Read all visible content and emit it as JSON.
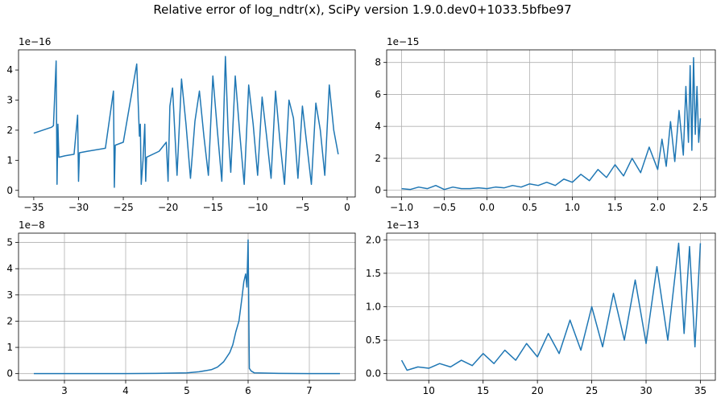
{
  "figure": {
    "suptitle": "Relative error of log_ndtr(x), SciPy version 1.9.0.dev0+1033.5bfbe97"
  },
  "colors": {
    "line": "#1f77b4",
    "grid": "#b0b0b0",
    "axes": "#000000"
  },
  "chart_data": [
    {
      "type": "line",
      "title": "",
      "xlabel": "",
      "ylabel": "",
      "y_scale_label": "1e−16",
      "xlim": [
        -36.7,
        0.9
      ],
      "ylim": [
        -0.22,
        4.67
      ],
      "xticks": [
        -35,
        -30,
        -25,
        -20,
        -15,
        -10,
        -5,
        0
      ],
      "xtick_labels": [
        "−35",
        "−30",
        "−25",
        "−20",
        "−15",
        "−10",
        "−5",
        "0"
      ],
      "yticks": [
        0,
        1,
        2,
        3,
        4
      ],
      "ytick_labels": [
        "0",
        "1",
        "2",
        "3",
        "4"
      ],
      "grid": false,
      "series": [
        {
          "x": [
            -35,
            -34,
            -33,
            -32.8,
            -32.5,
            -32.4,
            -32.3,
            -32.2,
            -31.5,
            -30.5,
            -30.1,
            -30.0,
            -29.9,
            -29,
            -27,
            -26.1,
            -26.0,
            -25.9,
            -25,
            -23.5,
            -23.2,
            -23.1,
            -23.0,
            -22.8,
            -22.6,
            -22.5,
            -22.4,
            -21,
            -20.2,
            -20.0,
            -19.8,
            -19.5,
            -19.0,
            -18.5,
            -18.0,
            -17.5,
            -17.0,
            -16.5,
            -16.0,
            -15.5,
            -15.0,
            -14.5,
            -14.0,
            -13.6,
            -13.3,
            -13.0,
            -12.5,
            -12.0,
            -11.5,
            -11.0,
            -10.5,
            -10.0,
            -9.5,
            -9.0,
            -8.5,
            -8.0,
            -7.5,
            -7.0,
            -6.5,
            -6.0,
            -5.5,
            -5.0,
            -4.5,
            -4.0,
            -3.5,
            -3.0,
            -2.5,
            -2.0,
            -1.5,
            -1.0
          ],
          "values": [
            1.9,
            2.0,
            2.1,
            2.15,
            4.3,
            0.2,
            2.2,
            1.1,
            1.15,
            1.2,
            2.5,
            0.3,
            1.25,
            1.3,
            1.4,
            3.3,
            0.1,
            1.5,
            1.6,
            4.2,
            1.8,
            2.2,
            0.2,
            1.0,
            2.2,
            0.3,
            1.1,
            1.3,
            1.6,
            0.3,
            2.8,
            3.4,
            0.5,
            3.7,
            2.2,
            0.4,
            2.3,
            3.3,
            1.8,
            0.5,
            3.8,
            2.0,
            0.3,
            4.45,
            2.0,
            0.6,
            3.8,
            1.9,
            0.2,
            3.5,
            2.2,
            0.5,
            3.1,
            1.8,
            0.4,
            3.3,
            1.6,
            0.2,
            3.0,
            2.4,
            0.4,
            2.8,
            1.5,
            0.2,
            2.9,
            2.0,
            0.5,
            3.5,
            2.0,
            1.2
          ]
        }
      ]
    },
    {
      "type": "line",
      "title": "",
      "xlabel": "",
      "ylabel": "",
      "y_scale_label": "1e−15",
      "xlim": [
        -1.175,
        2.675
      ],
      "ylim": [
        -0.42,
        8.79
      ],
      "xticks": [
        -1.0,
        -0.5,
        0.0,
        0.5,
        1.0,
        1.5,
        2.0,
        2.5
      ],
      "xtick_labels": [
        "−1.0",
        "−0.5",
        "0.0",
        "0.5",
        "1.0",
        "1.5",
        "2.0",
        "2.5"
      ],
      "yticks": [
        0,
        2,
        4,
        6,
        8
      ],
      "ytick_labels": [
        "0",
        "2",
        "4",
        "6",
        "8"
      ],
      "grid": true,
      "series": [
        {
          "x": [
            -1.0,
            -0.9,
            -0.8,
            -0.7,
            -0.6,
            -0.5,
            -0.4,
            -0.3,
            -0.2,
            -0.1,
            0.0,
            0.1,
            0.2,
            0.3,
            0.4,
            0.5,
            0.6,
            0.7,
            0.8,
            0.9,
            1.0,
            1.1,
            1.2,
            1.3,
            1.4,
            1.5,
            1.6,
            1.7,
            1.8,
            1.9,
            2.0,
            2.05,
            2.1,
            2.15,
            2.2,
            2.25,
            2.3,
            2.33,
            2.36,
            2.38,
            2.4,
            2.42,
            2.44,
            2.46,
            2.48,
            2.5
          ],
          "values": [
            0.1,
            0.05,
            0.2,
            0.1,
            0.3,
            0.05,
            0.2,
            0.1,
            0.1,
            0.15,
            0.1,
            0.2,
            0.15,
            0.3,
            0.2,
            0.4,
            0.3,
            0.5,
            0.3,
            0.7,
            0.5,
            1.0,
            0.6,
            1.3,
            0.8,
            1.6,
            0.9,
            2.0,
            1.1,
            2.7,
            1.3,
            3.2,
            1.5,
            4.3,
            1.8,
            5.0,
            2.2,
            6.5,
            3.0,
            7.8,
            2.5,
            8.3,
            3.5,
            6.5,
            3.0,
            4.5
          ]
        }
      ]
    },
    {
      "type": "line",
      "title": "",
      "xlabel": "",
      "ylabel": "",
      "y_scale_label": "1e−8",
      "xlim": [
        2.25,
        7.75
      ],
      "ylim": [
        -0.255,
        5.355
      ],
      "xticks": [
        3,
        4,
        5,
        6,
        7
      ],
      "xtick_labels": [
        "3",
        "4",
        "5",
        "6",
        "7"
      ],
      "yticks": [
        0,
        1,
        2,
        3,
        4,
        5
      ],
      "ytick_labels": [
        "0",
        "1",
        "2",
        "3",
        "4",
        "5"
      ],
      "grid": true,
      "series": [
        {
          "x": [
            2.5,
            3.0,
            3.5,
            4.0,
            4.5,
            5.0,
            5.2,
            5.4,
            5.5,
            5.6,
            5.7,
            5.75,
            5.8,
            5.85,
            5.9,
            5.93,
            5.96,
            5.98,
            6.0,
            6.02,
            6.05,
            6.1,
            6.5,
            7.0,
            7.5
          ],
          "values": [
            0,
            0,
            0,
            0,
            0.01,
            0.03,
            0.07,
            0.15,
            0.25,
            0.45,
            0.8,
            1.1,
            1.6,
            2.0,
            2.9,
            3.5,
            3.8,
            3.3,
            5.1,
            0.2,
            0.1,
            0.03,
            0.01,
            0,
            0
          ]
        }
      ]
    },
    {
      "type": "line",
      "title": "",
      "xlabel": "",
      "ylabel": "",
      "y_scale_label": "1e−13",
      "xlim": [
        6.125,
        36.375
      ],
      "ylim": [
        -0.1,
        2.1
      ],
      "xticks": [
        10,
        15,
        20,
        25,
        30,
        35
      ],
      "xtick_labels": [
        "10",
        "15",
        "20",
        "25",
        "30",
        "35"
      ],
      "yticks": [
        0.0,
        0.5,
        1.0,
        1.5,
        2.0
      ],
      "ytick_labels": [
        "0.0",
        "0.5",
        "1.0",
        "1.5",
        "2.0"
      ],
      "grid": true,
      "series": [
        {
          "x": [
            7.5,
            8,
            9,
            10,
            11,
            12,
            13,
            14,
            15,
            16,
            17,
            18,
            19,
            20,
            21,
            22,
            23,
            24,
            25,
            26,
            27,
            28,
            29,
            30,
            31,
            32,
            33,
            33.5,
            34,
            34.5,
            35
          ],
          "values": [
            0.2,
            0.05,
            0.1,
            0.08,
            0.15,
            0.1,
            0.2,
            0.12,
            0.3,
            0.15,
            0.35,
            0.2,
            0.45,
            0.25,
            0.6,
            0.3,
            0.8,
            0.35,
            1.0,
            0.4,
            1.2,
            0.5,
            1.4,
            0.45,
            1.6,
            0.5,
            1.95,
            0.6,
            1.9,
            0.4,
            1.95
          ]
        }
      ]
    }
  ]
}
